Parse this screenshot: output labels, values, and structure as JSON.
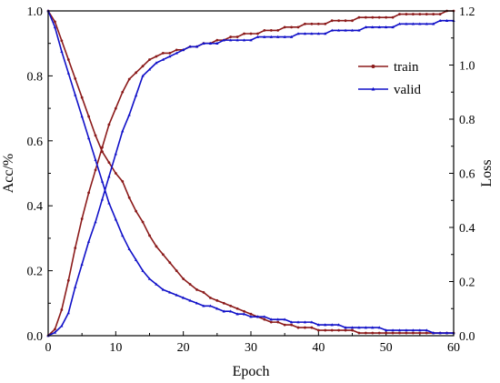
{
  "chart_data": {
    "type": "line",
    "xlabel": "Epoch",
    "ylabel_left": "Acc/%",
    "ylabel_right": "Loss",
    "xlim": [
      0,
      60
    ],
    "ylim_left": [
      0,
      1.0
    ],
    "ylim_right": [
      0,
      1.2
    ],
    "x_ticks": [
      "0",
      "10",
      "20",
      "30",
      "40",
      "50",
      "60"
    ],
    "y_ticks_left": [
      "0.0",
      "0.2",
      "0.4",
      "0.6",
      "0.8",
      "1.0"
    ],
    "y_ticks_right": [
      "0.0",
      "0.2",
      "0.4",
      "0.6",
      "0.8",
      "1.0",
      "1.2"
    ],
    "grid": false,
    "legend_position": "right",
    "x": [
      0,
      1,
      2,
      3,
      4,
      5,
      6,
      7,
      8,
      9,
      10,
      11,
      12,
      13,
      14,
      15,
      16,
      17,
      18,
      19,
      20,
      21,
      22,
      23,
      24,
      25,
      26,
      27,
      28,
      29,
      30,
      31,
      32,
      33,
      34,
      35,
      36,
      37,
      38,
      39,
      40,
      41,
      42,
      43,
      44,
      45,
      46,
      47,
      48,
      49,
      50,
      51,
      52,
      53,
      54,
      55,
      56,
      57,
      58,
      59,
      60
    ],
    "series": [
      {
        "name": "train",
        "color": "#8B1A1A",
        "marker": "dot",
        "values_left_axis": [
          0.0,
          0.02,
          0.08,
          0.17,
          0.27,
          0.36,
          0.44,
          0.51,
          0.58,
          0.65,
          0.7,
          0.75,
          0.79,
          0.81,
          0.83,
          0.85,
          0.86,
          0.87,
          0.87,
          0.88,
          0.88,
          0.89,
          0.89,
          0.9,
          0.9,
          0.91,
          0.91,
          0.92,
          0.92,
          0.93,
          0.93,
          0.93,
          0.94,
          0.94,
          0.94,
          0.95,
          0.95,
          0.95,
          0.96,
          0.96,
          0.96,
          0.96,
          0.97,
          0.97,
          0.97,
          0.97,
          0.98,
          0.98,
          0.98,
          0.98,
          0.98,
          0.98,
          0.99,
          0.99,
          0.99,
          0.99,
          0.99,
          0.99,
          0.99,
          1.0,
          1.0
        ],
        "values_right_axis": [
          1.2,
          1.16,
          1.09,
          1.02,
          0.95,
          0.88,
          0.81,
          0.74,
          0.68,
          0.64,
          0.6,
          0.57,
          0.51,
          0.46,
          0.42,
          0.37,
          0.33,
          0.3,
          0.27,
          0.24,
          0.21,
          0.19,
          0.17,
          0.16,
          0.14,
          0.13,
          0.12,
          0.11,
          0.1,
          0.09,
          0.08,
          0.07,
          0.06,
          0.05,
          0.05,
          0.04,
          0.04,
          0.03,
          0.03,
          0.03,
          0.02,
          0.02,
          0.02,
          0.02,
          0.02,
          0.02,
          0.01,
          0.01,
          0.01,
          0.01,
          0.01,
          0.01,
          0.01,
          0.01,
          0.01,
          0.01,
          0.01,
          0.01,
          0.01,
          0.01,
          0.01
        ]
      },
      {
        "name": "valid",
        "color": "#1010C8",
        "marker": "triangle",
        "values_left_axis": [
          0.0,
          0.01,
          0.03,
          0.07,
          0.15,
          0.22,
          0.29,
          0.35,
          0.42,
          0.49,
          0.56,
          0.63,
          0.68,
          0.74,
          0.8,
          0.82,
          0.84,
          0.85,
          0.86,
          0.87,
          0.88,
          0.89,
          0.89,
          0.9,
          0.9,
          0.9,
          0.91,
          0.91,
          0.91,
          0.91,
          0.91,
          0.92,
          0.92,
          0.92,
          0.92,
          0.92,
          0.92,
          0.93,
          0.93,
          0.93,
          0.93,
          0.93,
          0.94,
          0.94,
          0.94,
          0.94,
          0.94,
          0.95,
          0.95,
          0.95,
          0.95,
          0.95,
          0.96,
          0.96,
          0.96,
          0.96,
          0.96,
          0.96,
          0.97,
          0.97,
          0.97
        ],
        "values_right_axis": [
          1.2,
          1.14,
          1.05,
          0.97,
          0.89,
          0.81,
          0.73,
          0.65,
          0.57,
          0.49,
          0.43,
          0.37,
          0.32,
          0.28,
          0.24,
          0.21,
          0.19,
          0.17,
          0.16,
          0.15,
          0.14,
          0.13,
          0.12,
          0.11,
          0.11,
          0.1,
          0.09,
          0.09,
          0.08,
          0.08,
          0.07,
          0.07,
          0.07,
          0.06,
          0.06,
          0.06,
          0.05,
          0.05,
          0.05,
          0.05,
          0.04,
          0.04,
          0.04,
          0.04,
          0.03,
          0.03,
          0.03,
          0.03,
          0.03,
          0.03,
          0.02,
          0.02,
          0.02,
          0.02,
          0.02,
          0.02,
          0.02,
          0.01,
          0.01,
          0.01,
          0.01
        ]
      }
    ]
  }
}
